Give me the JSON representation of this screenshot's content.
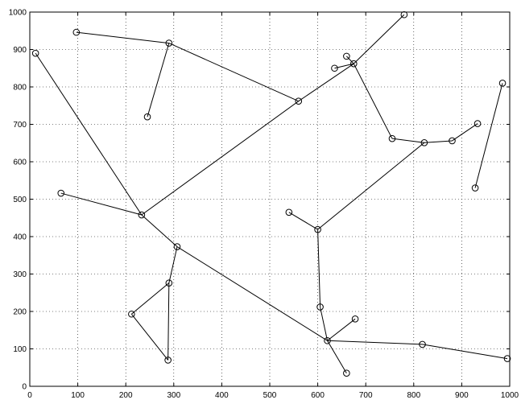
{
  "chart_data": {
    "type": "scatter",
    "title": "",
    "xlabel": "",
    "ylabel": "",
    "xlim": [
      0,
      1000
    ],
    "ylim": [
      0,
      1000
    ],
    "grid": true,
    "x_ticks": [
      0,
      100,
      200,
      300,
      400,
      500,
      600,
      700,
      800,
      900,
      1000
    ],
    "y_ticks": [
      0,
      100,
      200,
      300,
      400,
      500,
      600,
      700,
      800,
      900,
      1000
    ],
    "points": [
      {
        "x": 12,
        "y": 890
      },
      {
        "x": 97,
        "y": 946
      },
      {
        "x": 290,
        "y": 917
      },
      {
        "x": 245,
        "y": 720
      },
      {
        "x": 560,
        "y": 762
      },
      {
        "x": 675,
        "y": 862
      },
      {
        "x": 780,
        "y": 993
      },
      {
        "x": 635,
        "y": 850
      },
      {
        "x": 660,
        "y": 882
      },
      {
        "x": 755,
        "y": 662
      },
      {
        "x": 822,
        "y": 651
      },
      {
        "x": 880,
        "y": 656
      },
      {
        "x": 933,
        "y": 702
      },
      {
        "x": 985,
        "y": 810
      },
      {
        "x": 928,
        "y": 530
      },
      {
        "x": 65,
        "y": 516
      },
      {
        "x": 233,
        "y": 458
      },
      {
        "x": 307,
        "y": 373
      },
      {
        "x": 290,
        "y": 276
      },
      {
        "x": 212,
        "y": 193
      },
      {
        "x": 288,
        "y": 70
      },
      {
        "x": 540,
        "y": 465
      },
      {
        "x": 600,
        "y": 419
      },
      {
        "x": 605,
        "y": 212
      },
      {
        "x": 620,
        "y": 122
      },
      {
        "x": 678,
        "y": 180
      },
      {
        "x": 660,
        "y": 35
      },
      {
        "x": 818,
        "y": 112
      },
      {
        "x": 995,
        "y": 74
      }
    ],
    "edges": [
      [
        1,
        2
      ],
      [
        2,
        3
      ],
      [
        2,
        4
      ],
      [
        4,
        5
      ],
      [
        5,
        6
      ],
      [
        5,
        7
      ],
      [
        5,
        8
      ],
      [
        5,
        9
      ],
      [
        9,
        10
      ],
      [
        10,
        11
      ],
      [
        11,
        12
      ],
      [
        13,
        14
      ],
      [
        0,
        16
      ],
      [
        15,
        16
      ],
      [
        16,
        4
      ],
      [
        16,
        17
      ],
      [
        17,
        18
      ],
      [
        18,
        19
      ],
      [
        19,
        20
      ],
      [
        20,
        18
      ],
      [
        17,
        24
      ],
      [
        10,
        22
      ],
      [
        21,
        22
      ],
      [
        22,
        23
      ],
      [
        23,
        24
      ],
      [
        24,
        25
      ],
      [
        24,
        26
      ],
      [
        24,
        27
      ],
      [
        27,
        28
      ]
    ]
  }
}
